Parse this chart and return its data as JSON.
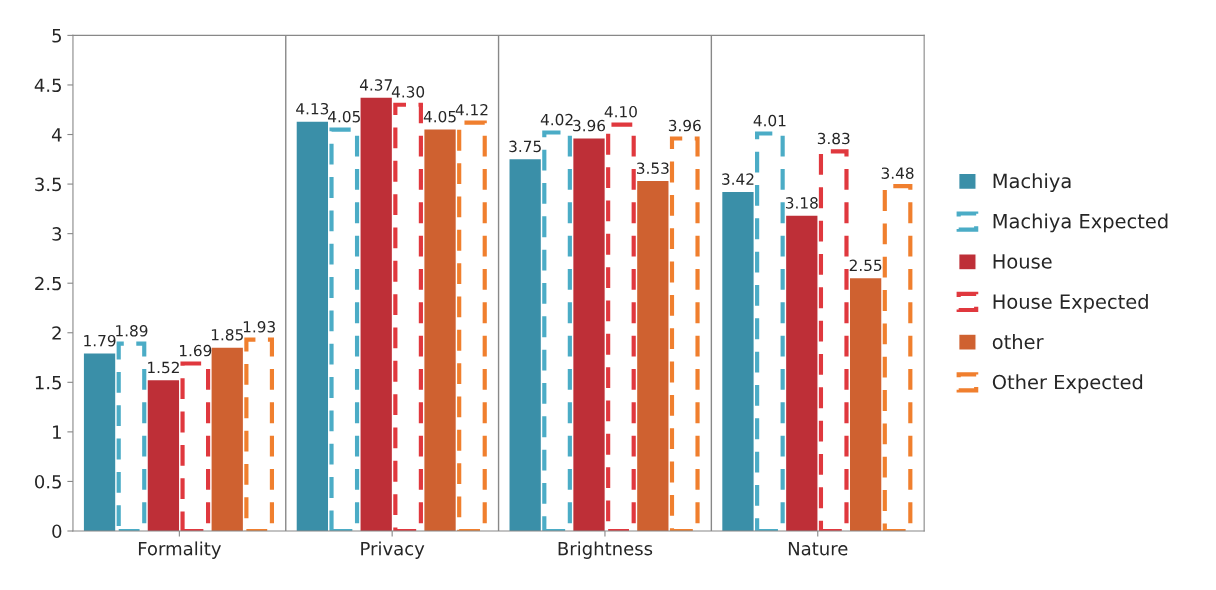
{
  "chart_data": {
    "type": "bar",
    "categories": [
      "Formality",
      "Privacy",
      "Brightness",
      "Nature"
    ],
    "series": [
      {
        "name": "Machiya",
        "color": "#3a8fa8",
        "values": [
          1.79,
          4.13,
          3.75,
          3.42
        ],
        "value_labels": [
          "1.79",
          "4.13",
          "3.75",
          "3.42"
        ]
      },
      {
        "name": "Machiya Expected",
        "color": "#4bacc6",
        "line_style": "dashed",
        "values": [
          1.89,
          4.05,
          4.02,
          4.01
        ],
        "value_labels": [
          "1.89",
          "4.05",
          "4.02",
          "4.01"
        ]
      },
      {
        "name": "House",
        "color": "#be2f37",
        "values": [
          1.52,
          4.37,
          3.96,
          3.18
        ],
        "value_labels": [
          "1.52",
          "4.37",
          "3.96",
          "3.18"
        ]
      },
      {
        "name": "House Expected",
        "color": "#e0383e",
        "line_style": "dashed",
        "values": [
          1.69,
          4.3,
          4.1,
          3.83
        ],
        "value_labels": [
          "1.69",
          "4.30",
          "4.10",
          "3.83"
        ]
      },
      {
        "name": "other",
        "color": "#cf6130",
        "values": [
          1.85,
          4.05,
          3.53,
          2.55
        ],
        "value_labels": [
          "1.85",
          "4.05",
          "3.53",
          "2.55"
        ]
      },
      {
        "name": "Other Expected",
        "color": "#f07f2e",
        "line_style": "dashed",
        "values": [
          1.93,
          4.12,
          3.96,
          3.48
        ],
        "value_labels": [
          "1.93",
          "4.12",
          "3.96",
          "3.48"
        ]
      }
    ],
    "ylim": [
      0,
      5
    ],
    "yticks": [
      0,
      0.5,
      1,
      1.5,
      2,
      2.5,
      3,
      3.5,
      4,
      4.5,
      5
    ],
    "grid": "x",
    "legend": "right"
  }
}
